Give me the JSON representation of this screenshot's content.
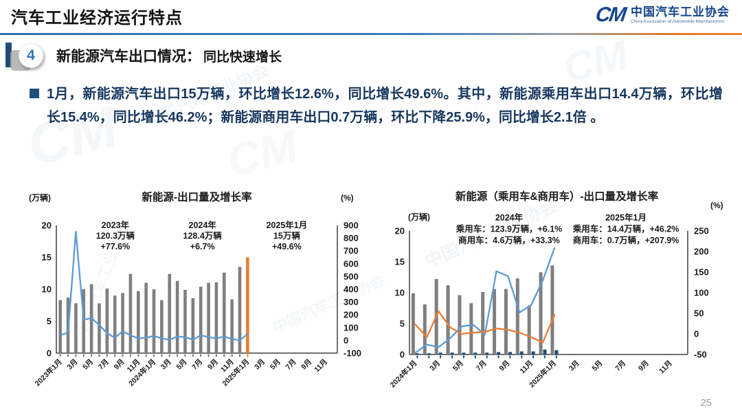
{
  "header": {
    "title": "汽车工业经济运行特点",
    "logo": {
      "glyph": "CM",
      "org_cn": "中国汽车工业协会",
      "org_en": "China Association of Automobile Manufacturers"
    }
  },
  "section": {
    "number": "4",
    "title": "新能源汽车出口情况：",
    "subtitle": "同比快速增长"
  },
  "body": {
    "bullet_text": "1月，新能源汽车出口15万辆，环比增长12.6%，同比增长49.6%。其中，新能源乘用车出口14.4万辆，环比增长15.4%，同比增长46.2%；新能源商用车出口0.7万辆，环比下降25.9%，同比增长2.1倍 。"
  },
  "watermark": {
    "glyph": "CM",
    "text": "中国汽车工业协会"
  },
  "page_number": "25",
  "colors": {
    "bar_gray": "#7f7f7f",
    "line_blue": "#5b9bd5",
    "orange": "#ed7d31",
    "navy": "#1f4e79",
    "accent_blue": "#2e74b5",
    "body_text": "#17375e"
  },
  "chart_data": [
    {
      "type": "bar",
      "title": "新能源-出口量及增长率",
      "left_axis_label": "(万辆)",
      "right_axis_label": "(%)",
      "left_ylim": [
        0,
        20
      ],
      "left_ticks": [
        0,
        5,
        10,
        15,
        20
      ],
      "right_ylim": [
        -100,
        900
      ],
      "right_ticks": [
        900,
        800,
        700,
        600,
        500,
        400,
        300,
        200,
        100,
        0,
        -100
      ],
      "months_total": 36,
      "x_tick_labels": [
        "2023年1月",
        "3月",
        "5月",
        "7月",
        "9月",
        "11月",
        "2024年1月",
        "3月",
        "5月",
        "7月",
        "9月",
        "11月",
        "2025年1月",
        "3月",
        "5月",
        "7月",
        "9月",
        "11月"
      ],
      "grid": false,
      "legend": "none",
      "series": [
        {
          "name": "出口量（万辆）",
          "type": "bar",
          "axis": "left",
          "color": "#7f7f7f",
          "last_color": "#ed7d31",
          "stub": true,
          "values": [
            8.3,
            8.7,
            7.8,
            10.0,
            10.8,
            7.8,
            10.1,
            9.0,
            9.4,
            12.4,
            9.7,
            11.0,
            10.0,
            8.3,
            12.4,
            11.3,
            9.9,
            8.6,
            10.4,
            11.0,
            11.1,
            12.6,
            8.4,
            13.5,
            15.0
          ]
        },
        {
          "name": "增长率（%）",
          "type": "line",
          "axis": "right",
          "color": "#5b9bd5",
          "values": [
            40,
            60,
            850,
            160,
            175,
            120,
            55,
            20,
            70,
            40,
            15,
            20,
            35,
            15,
            5,
            30,
            25,
            5,
            40,
            25,
            15,
            30,
            10,
            0,
            49.6
          ]
        }
      ],
      "annotations": [
        {
          "lines": [
            "2023年",
            "120.3万辆",
            "+77.6%"
          ]
        },
        {
          "lines": [
            "2024年",
            "128.4万辆",
            "+6.7%"
          ]
        },
        {
          "lines": [
            "2025年1月",
            "15万辆",
            "+49.6%"
          ]
        }
      ]
    },
    {
      "type": "bar",
      "title": "新能源（乘用车&商用车）-出口量及增长率",
      "left_axis_label": "(万辆)",
      "right_axis_label": "(%)",
      "left_ylim": [
        0,
        20
      ],
      "left_ticks": [
        0,
        5,
        10,
        15,
        20
      ],
      "right_ylim": [
        -50,
        250
      ],
      "right_ticks": [
        250,
        200,
        150,
        100,
        50,
        0,
        -50
      ],
      "months_total": 24,
      "x_tick_labels": [
        "2024年1月",
        "3月",
        "5月",
        "7月",
        "9月",
        "11月",
        "2025年1月",
        "3月",
        "5月",
        "7月",
        "9月",
        "11月"
      ],
      "grid": false,
      "legend": "none",
      "series": [
        {
          "name": "乘用车出口量（万辆）",
          "type": "bar",
          "axis": "left",
          "color": "#7f7f7f",
          "offset": -3,
          "values": [
            9.9,
            8.1,
            12.2,
            11.2,
            9.6,
            8.3,
            10.1,
            10.6,
            10.6,
            12.3,
            7.9,
            13.3,
            14.4
          ]
        },
        {
          "name": "商用车出口量（万辆）",
          "type": "bar",
          "axis": "left",
          "color": "#1f4e79",
          "offset": 3,
          "stub": true,
          "values": [
            0.2,
            0.2,
            0.3,
            0.3,
            0.3,
            0.3,
            0.3,
            0.4,
            0.4,
            0.5,
            0.5,
            0.8,
            0.7
          ]
        },
        {
          "name": "商用车增长率（%）",
          "type": "line",
          "axis": "right",
          "color": "#5b9bd5",
          "values": [
            -46,
            -26,
            -32,
            -11,
            18,
            22,
            -2,
            152,
            140,
            52,
            70,
            130,
            207.9
          ]
        },
        {
          "name": "乘用车增长率（%）",
          "type": "line",
          "axis": "right",
          "color": "#ed7d31",
          "values": [
            23,
            -8,
            55,
            16,
            0,
            3,
            5,
            13,
            10,
            3,
            -8,
            -21,
            46.2
          ]
        }
      ],
      "annotations": [
        {
          "lines": [
            "2024年",
            "乘用车：123.9万辆，+6.1%",
            "商用车：4.6万辆，+33.3%"
          ]
        },
        {
          "lines": [
            "2025年1月",
            "乘用车：14.4万辆，+46.2%",
            "商用车：0.7万辆，+207.9%"
          ]
        }
      ]
    }
  ]
}
